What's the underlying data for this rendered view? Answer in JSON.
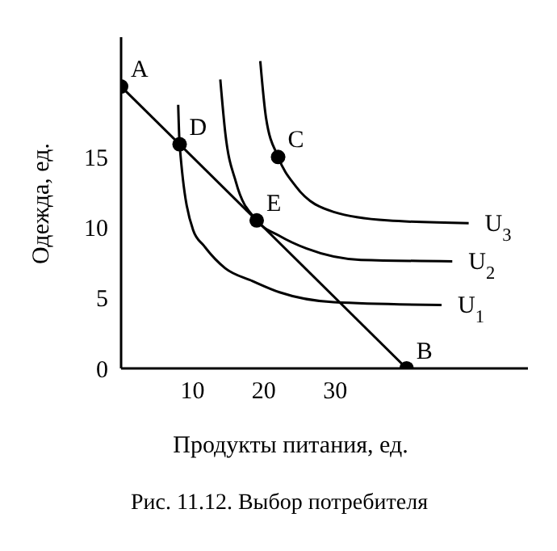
{
  "chart_data": {
    "type": "line",
    "title": "Рис. 11.12. Выбор потребителя",
    "xlabel": "Продукты питания, ед.",
    "ylabel": "Одежда, ед.",
    "xlim": [
      0,
      57
    ],
    "ylim": [
      0,
      23.5
    ],
    "xticks": [
      10,
      20,
      30
    ],
    "yticks": [
      0,
      5,
      10,
      15
    ],
    "series": [
      {
        "name": "U$_{1}$",
        "color": "#000000",
        "marker": "none",
        "x": [
          8.0,
          8.2,
          10.1,
          11.6,
          14.6,
          18.4,
          22.2,
          29.8,
          44.9
        ],
        "values": [
          18.7,
          15.9,
          9.8,
          8.7,
          7.1,
          6.2,
          5.4,
          4.7,
          4.5
        ]
      },
      {
        "name": "U$_{2}$",
        "color": "#000000",
        "marker": "none",
        "x": [
          13.9,
          14.6,
          16.1,
          19,
          22.2,
          26,
          33.6,
          46.4
        ],
        "values": [
          20.5,
          16.7,
          13.2,
          10.5,
          9.4,
          8.5,
          7.7,
          7.6
        ]
      },
      {
        "name": "U$_{3}$",
        "color": "#000000",
        "marker": "none",
        "x": [
          19.5,
          20.3,
          22,
          24.5,
          29.8,
          37.3,
          48.7
        ],
        "values": [
          21.8,
          17.8,
          15,
          12.9,
          11.1,
          10.5,
          10.3
        ]
      },
      {
        "color": "#000000",
        "marker": "none",
        "x": [
          0,
          40
        ],
        "values": [
          20,
          0
        ]
      },
      {
        "type": "scatter",
        "color": "#000000",
        "marker": "circle",
        "x": [
          0,
          40,
          22,
          8.2,
          19
        ],
        "values": [
          20,
          0,
          15,
          15.9,
          10.5
        ]
      }
    ],
    "annotations": [
      {
        "text": "A",
        "x": 0,
        "y": 20
      },
      {
        "text": "B",
        "x": 40,
        "y": 0
      },
      {
        "text": "C",
        "x": 22,
        "y": 15
      },
      {
        "text": "D",
        "x": 8.2,
        "y": 15.9
      },
      {
        "text": "E",
        "x": 19,
        "y": 10.5
      }
    ]
  }
}
